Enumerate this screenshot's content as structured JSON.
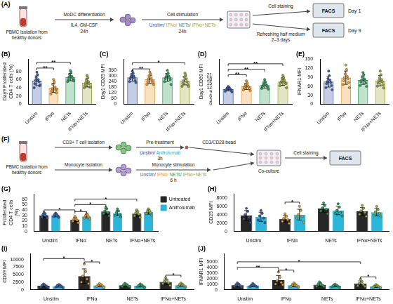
{
  "diagrams": [
    {
      "label": "(A)",
      "source": "PBMC isolation from healthy donors",
      "steps": [
        {
          "above": "MoDC differentiation",
          "below": [
            "IL4, GM-CSF",
            "24h"
          ]
        },
        {
          "above": "Cell stimulation",
          "tokens": [
            {
              "text": "Unstim/",
              "color": "#3b5ba5"
            },
            {
              "text": "IFNα/",
              "color": "#e69b2e"
            },
            {
              "text": "NETs/",
              "color": "#2e9e5b"
            },
            {
              "text": "IFNα+NETs",
              "color": "#9aa83a"
            }
          ],
          "below": [
            "24h"
          ]
        }
      ],
      "branches": [
        {
          "label": "Cell staining",
          "readout": "FACS",
          "day": "Day 1"
        },
        {
          "label": "Refreshing half medium 2–3 days",
          "readout": "FACS",
          "day": "Day 9"
        }
      ]
    },
    {
      "label": "(F)",
      "source": "PBMC isolation from healthy donors",
      "upper": {
        "isolation": "CD3+ T cell isolation",
        "treatment": "Pre-treatment",
        "tokens": [
          {
            "text": "Unstim/",
            "color": "#2b3f73"
          },
          {
            "text": "Anifrolumab",
            "color": "#1fa9cf"
          }
        ],
        "below": [
          "3h"
        ],
        "stimulus": "CD3/CD28 bead"
      },
      "lower": {
        "isolation": "Monocyte isolation",
        "treatment": "Monocyte stimulation",
        "tokens": [
          {
            "text": "Unstim/",
            "color": "#3b5ba5"
          },
          {
            "text": "IFNα/",
            "color": "#e69b2e"
          },
          {
            "text": "NETs/",
            "color": "#2e9e5b"
          },
          {
            "text": "IFNα+NETs",
            "color": "#9aa83a"
          }
        ],
        "below": [
          "6 h"
        ]
      },
      "join": "Co-culture",
      "final": "Cell staining",
      "readout": "FACS"
    }
  ],
  "chart_data": [
    {
      "label": "(B)",
      "type": "bar",
      "y_label": "Day9 Proliferated CD4 T cells (%)",
      "categories": [
        "Unstim",
        "IFNα",
        "NETs",
        "IFNα+NETs"
      ],
      "colors": [
        "#3b5ba5",
        "#e69b2e",
        "#2e9e5b",
        "#9aa83a"
      ],
      "values": [
        57,
        40,
        66,
        52
      ],
      "errors": [
        12,
        11,
        9,
        10
      ],
      "points": [
        [
          78,
          72,
          65,
          60,
          58,
          55,
          50,
          45,
          40,
          47
        ],
        [
          60,
          55,
          48,
          42,
          38,
          35,
          32,
          28,
          25,
          37
        ],
        [
          82,
          78,
          72,
          68,
          66,
          64,
          60,
          58,
          55,
          57
        ],
        [
          70,
          65,
          58,
          55,
          52,
          50,
          46,
          42,
          40,
          42
        ]
      ],
      "ylim": [
        0,
        110
      ],
      "yticks": [
        0,
        20,
        40,
        60,
        80
      ],
      "grid": false,
      "significance": [
        {
          "from": 0,
          "to": 1,
          "y": 88,
          "label": "**"
        },
        {
          "from": 0,
          "to": 2,
          "y": 102,
          "label": "**"
        }
      ]
    },
    {
      "label": "(C)",
      "type": "bar",
      "y_label": "Day1 CD25 MFI",
      "categories": [
        "Unstim",
        "IFNα",
        "NETs",
        "IFNα+NETs"
      ],
      "colors": [
        "#3b5ba5",
        "#e69b2e",
        "#2e9e5b",
        "#9aa83a"
      ],
      "values": [
        285,
        265,
        285,
        250
      ],
      "errors": [
        40,
        42,
        42,
        45
      ],
      "points": [
        [
          350,
          330,
          310,
          300,
          290,
          280,
          270,
          250,
          240,
          230
        ],
        [
          340,
          320,
          300,
          280,
          270,
          250,
          240,
          230,
          210,
          210
        ],
        [
          360,
          330,
          310,
          300,
          290,
          280,
          270,
          260,
          240,
          210
        ],
        [
          330,
          310,
          290,
          270,
          250,
          240,
          220,
          210,
          190,
          190
        ]
      ],
      "ylim": [
        0,
        480
      ],
      "yticks": [
        0,
        60,
        120,
        180,
        240,
        300,
        360
      ],
      "grid": false,
      "significance": [
        {
          "from": 0,
          "to": 1,
          "y": 375,
          "label": "**"
        },
        {
          "from": 0,
          "to": 3,
          "y": 440,
          "label": "*"
        }
      ]
    },
    {
      "label": "(D)",
      "type": "bar",
      "y_label": "Day1 CD69 MFI",
      "categories": [
        "Unstim",
        "IFNα",
        "NETs",
        "IFNα+NETs"
      ],
      "colors": [
        "#3b5ba5",
        "#e69b2e",
        "#2e9e5b",
        "#9aa83a"
      ],
      "values": [
        11,
        13,
        14,
        16.5
      ],
      "errors": [
        1.2,
        2.2,
        2.2,
        2.7
      ],
      "points": [
        [
          13,
          12.5,
          12,
          11.5,
          11,
          11,
          10.5,
          10,
          9.5,
          9
        ],
        [
          17,
          15.5,
          14.5,
          13.5,
          13,
          12.5,
          12,
          11.5,
          10.5,
          10
        ],
        [
          18,
          16.5,
          15.5,
          14.5,
          14,
          13.5,
          13,
          12.5,
          11.5,
          11
        ],
        [
          21,
          19.5,
          18.5,
          17.5,
          16.5,
          16,
          15.5,
          15,
          13.5,
          12
        ]
      ],
      "ylim": [
        0,
        33
      ],
      "yticks": [
        0,
        3,
        6,
        9,
        12,
        15,
        18,
        21
      ],
      "grid": false,
      "significance": [
        {
          "from": 0,
          "to": 1,
          "y": 21.5,
          "label": "**"
        },
        {
          "from": 0,
          "to": 2,
          "y": 25.5,
          "label": "**"
        },
        {
          "from": 0,
          "to": 3,
          "y": 29.5,
          "label": "**"
        }
      ]
    },
    {
      "label": "(E)",
      "type": "bar",
      "y_label": "IFNAR1 MFI",
      "categories": [
        "Unstim",
        "IFNα",
        "NETs",
        "IFNα+NETs"
      ],
      "colors": [
        "#3b5ba5",
        "#e69b2e",
        "#2e9e5b",
        "#9aa83a"
      ],
      "values": [
        75,
        88,
        80,
        78
      ],
      "errors": [
        18,
        22,
        14,
        17
      ],
      "points": [
        [
          110,
          95,
          85,
          80,
          75,
          72,
          68,
          62,
          55,
          48
        ],
        [
          130,
          115,
          100,
          92,
          88,
          85,
          78,
          72,
          65,
          55
        ],
        [
          105,
          98,
          90,
          84,
          80,
          78,
          74,
          70,
          62,
          59
        ],
        [
          110,
          98,
          88,
          82,
          78,
          75,
          70,
          65,
          60,
          54
        ]
      ],
      "ylim": [
        0,
        150
      ],
      "yticks": [
        0,
        30,
        60,
        90,
        120,
        150
      ],
      "grid": false
    },
    {
      "label": "(G)",
      "type": "bar",
      "y_label": "Proliferated CD4 T cells (%)",
      "categories": [
        "Unstim",
        "IFNα",
        "NETs",
        "IFNα+NETs"
      ],
      "colors": [
        "#3b5ba5",
        "#e69b2e",
        "#2e9e5b",
        "#9aa83a"
      ],
      "series": [
        {
          "name": "Untreated",
          "color": "#262626",
          "values": [
            30,
            22,
            37,
            33
          ],
          "errors": [
            4,
            4,
            6,
            5
          ],
          "points": [
            [
              35,
              33,
              31,
              29,
              27,
              25
            ],
            [
              28,
              25,
              23,
              21,
              19,
              16
            ],
            [
              45,
              42,
              38,
              35,
              33,
              29
            ],
            [
              40,
              37,
              34,
              32,
              29,
              26
            ]
          ]
        },
        {
          "name": "Anifrolumab",
          "color": "#2bb5d8",
          "values": [
            30,
            28,
            34,
            36
          ],
          "errors": [
            3,
            3,
            5,
            4
          ],
          "points": [
            [
              34,
              32,
              31,
              29,
              28,
              26
            ],
            [
              33,
              31,
              29,
              27,
              25,
              23
            ],
            [
              42,
              38,
              35,
              32,
              30,
              27
            ],
            [
              42,
              39,
              37,
              35,
              33,
              30
            ]
          ]
        }
      ],
      "ylim": [
        0,
        70
      ],
      "yticks": [
        0,
        10,
        20,
        30,
        40,
        50,
        60
      ],
      "grid": false,
      "legend": "right",
      "significance": [
        {
          "from": [
            1,
            0
          ],
          "to": [
            1,
            1
          ],
          "y": 37,
          "label": "*"
        },
        {
          "from": [
            0,
            0
          ],
          "to": [
            1,
            0
          ],
          "y": 40,
          "label": "*"
        },
        {
          "from": [
            1,
            0
          ],
          "to": [
            2,
            0
          ],
          "y": 50,
          "label": "*"
        },
        {
          "from": [
            1,
            0
          ],
          "to": [
            3,
            0
          ],
          "y": 60,
          "label": "*"
        }
      ]
    },
    {
      "label": "(H)",
      "type": "bar",
      "y_label": "CD25 MFI",
      "categories": [
        "Unstim",
        "IFNα",
        "NETs",
        "IFNα+NETs"
      ],
      "colors": [
        "#3b5ba5",
        "#e69b2e",
        "#2e9e5b",
        "#9aa83a"
      ],
      "series": [
        {
          "name": "Untreated",
          "color": "#262626",
          "values": [
            3800,
            3000,
            5500,
            4800
          ],
          "errors": [
            1200,
            800,
            900,
            900
          ],
          "points": [
            [
              5500,
              4800,
              4000,
              3400,
              3000,
              2100
            ],
            [
              4200,
              3600,
              3100,
              2800,
              2400,
              1900
            ],
            [
              6800,
              6200,
              5600,
              5300,
              4900,
              4200
            ],
            [
              6200,
              5500,
              4900,
              4500,
              4100,
              3600
            ]
          ]
        },
        {
          "name": "Anifrolumab",
          "color": "#2bb5d8",
          "values": [
            3500,
            4000,
            5000,
            4600
          ],
          "errors": [
            1100,
            1300,
            1000,
            900
          ],
          "points": [
            [
              5000,
              4300,
              3700,
              3200,
              2700,
              2100
            ],
            [
              6000,
              5000,
              4000,
              3600,
              3200,
              2200
            ],
            [
              6600,
              5800,
              5000,
              4600,
              4300,
              3700
            ],
            [
              6000,
              5200,
              4700,
              4300,
              3900,
              3500
            ]
          ]
        }
      ],
      "ylim": [
        0,
        9000
      ],
      "yticks": [
        0,
        2000,
        4000,
        6000,
        8000
      ],
      "grid": false,
      "significance": [
        {
          "from": [
            1,
            0
          ],
          "to": [
            1,
            1
          ],
          "y": 7000,
          "label": "*"
        }
      ]
    },
    {
      "label": "(I)",
      "type": "bar",
      "y_label": "CD69 MFI",
      "categories": [
        "Unstim",
        "IFNα",
        "NETs",
        "IFNα+NETs"
      ],
      "colors": [
        "#3b5ba5",
        "#e69b2e",
        "#2e9e5b",
        "#9aa83a"
      ],
      "series": [
        {
          "name": "Untreated",
          "color": "#262626",
          "values": [
            1300,
            4500,
            1500,
            2600
          ],
          "errors": [
            400,
            2400,
            400,
            900
          ],
          "points": [
            [
              1900,
              1600,
              1400,
              1200,
              900,
              800
            ],
            [
              8500,
              6000,
              4500,
              3500,
              2500,
              2000
            ],
            [
              2100,
              1800,
              1600,
              1400,
              1100,
              1000
            ],
            [
              4000,
              3200,
              2700,
              2300,
              2000,
              1400
            ]
          ]
        },
        {
          "name": "Anifrolumab",
          "color": "#2bb5d8",
          "values": [
            1200,
            1400,
            1300,
            1500
          ],
          "errors": [
            350,
            400,
            400,
            450
          ],
          "points": [
            [
              1700,
              1500,
              1300,
              1100,
              900,
              700
            ],
            [
              2000,
              1700,
              1500,
              1300,
              1100,
              800
            ],
            [
              1900,
              1600,
              1400,
              1200,
              1000,
              700
            ],
            [
              2200,
              1800,
              1600,
              1400,
              1100,
              900
            ]
          ]
        }
      ],
      "ylim": [
        0,
        12000
      ],
      "yticks": [
        0,
        2500,
        5000,
        7500,
        10000
      ],
      "grid": false,
      "significance": [
        {
          "from": [
            0,
            0
          ],
          "to": [
            1,
            0
          ],
          "y": 10300,
          "label": "*"
        },
        {
          "from": [
            1,
            0
          ],
          "to": [
            1,
            1
          ],
          "y": 9200,
          "label": "*"
        },
        {
          "from": [
            3,
            0
          ],
          "to": [
            3,
            1
          ],
          "y": 4800,
          "label": "*"
        }
      ]
    },
    {
      "label": "(J)",
      "type": "bar",
      "y_label": "IFNAR1 MFI",
      "categories": [
        "Unstim",
        "IFNα",
        "NETs",
        "IFNα+NETs"
      ],
      "colors": [
        "#3b5ba5",
        "#e69b2e",
        "#2e9e5b",
        "#9aa83a"
      ],
      "series": [
        {
          "name": "Untreated",
          "color": "#262626",
          "values": [
            800,
            1700,
            900,
            1100
          ],
          "errors": [
            270,
            850,
            300,
            480
          ],
          "points": [
            [
              1200,
              1000,
              850,
              700,
              600,
              450
            ],
            [
              3200,
              2200,
              1600,
              1300,
              1000,
              900
            ],
            [
              1400,
              1100,
              900,
              800,
              600,
              600
            ],
            [
              1900,
              1400,
              1100,
              900,
              700,
              600
            ]
          ]
        },
        {
          "name": "Anifrolumab",
          "color": "#2bb5d8",
          "values": [
            750,
            800,
            700,
            600
          ],
          "errors": [
            230,
            260,
            200,
            200
          ],
          "points": [
            [
              1100,
              900,
              800,
              650,
              550,
              500
            ],
            [
              1200,
              1000,
              800,
              700,
              600,
              500
            ],
            [
              1000,
              850,
              700,
              650,
              550,
              450
            ],
            [
              900,
              750,
              600,
              550,
              450,
              350
            ]
          ]
        }
      ],
      "ylim": [
        0,
        6500
      ],
      "yticks": [
        0,
        1000,
        2000,
        3000,
        4000,
        5000
      ],
      "grid": false,
      "significance": [
        {
          "from": [
            0,
            0
          ],
          "to": [
            1,
            0
          ],
          "y": 4000,
          "label": "**"
        },
        {
          "from": [
            1,
            0
          ],
          "to": [
            1,
            1
          ],
          "y": 3500,
          "label": "*"
        },
        {
          "from": [
            0,
            0
          ],
          "to": [
            3,
            0
          ],
          "y": 5000,
          "label": "*"
        },
        {
          "from": [
            3,
            0
          ],
          "to": [
            3,
            1
          ],
          "y": 2300,
          "label": "*"
        }
      ]
    }
  ]
}
